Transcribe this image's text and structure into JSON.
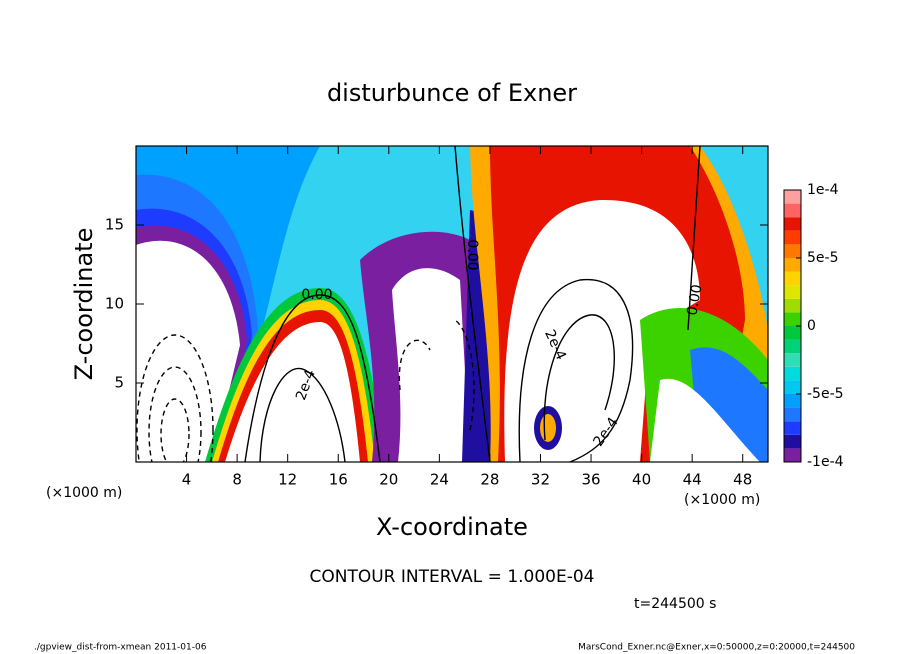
{
  "chart_data": {
    "type": "contour",
    "title": "disturbunce of Exner",
    "x_label": "X-coordinate",
    "y_label": "Z-coordinate",
    "x_unit_label": "(×1000 m)",
    "xlim": [
      0,
      50
    ],
    "ylim": [
      0,
      20
    ],
    "xticks": [
      4,
      8,
      12,
      16,
      20,
      24,
      28,
      32,
      36,
      40,
      44,
      48
    ],
    "yticks": [
      5,
      10,
      15
    ],
    "levels": [
      -0.0001,
      -9e-05,
      -8e-05,
      -7e-05,
      -6e-05,
      -5e-05,
      -4e-05,
      -3e-05,
      -2e-05,
      -1e-05,
      0,
      1e-05,
      2e-05,
      3e-05,
      4e-05,
      5e-05,
      6e-05,
      7e-05,
      8e-05,
      9e-05,
      0.0001
    ],
    "colors": [
      "#7a1fa0",
      "#1e0fa0",
      "#1e3cff",
      "#1e78ff",
      "#00a0ff",
      "#00c8f0",
      "#00dcdc",
      "#32dcb4",
      "#00d278",
      "#00c83c",
      "#3cd200",
      "#a0dc00",
      "#dce600",
      "#ffd200",
      "#ffaa00",
      "#ff7800",
      "#ff3c00",
      "#e61400",
      "#ff6464",
      "#ffa0a0"
    ],
    "colorbar_ticks": [
      {
        "value": -0.0001,
        "label": "-1e-4"
      },
      {
        "value": -5e-05,
        "label": "-5e-5"
      },
      0,
      {
        "value": 5e-05,
        "label": "5e-5"
      },
      {
        "value": 0.0001,
        "label": "1e-4"
      }
    ],
    "contour_labels": [
      "0.00",
      "0.00",
      "0.00",
      "2e-4",
      "2e-4",
      "2e-4"
    ],
    "contour_interval_text": "CONTOUR INTERVAL = 1.000E-04",
    "time_text": "t=244500 s",
    "footer_left": "./gpview_dist-from-xmean  2011-01-06",
    "footer_right": "MarsCond_Exner.nc@Exner,x=0:50000,z=0:20000,t=244500"
  }
}
